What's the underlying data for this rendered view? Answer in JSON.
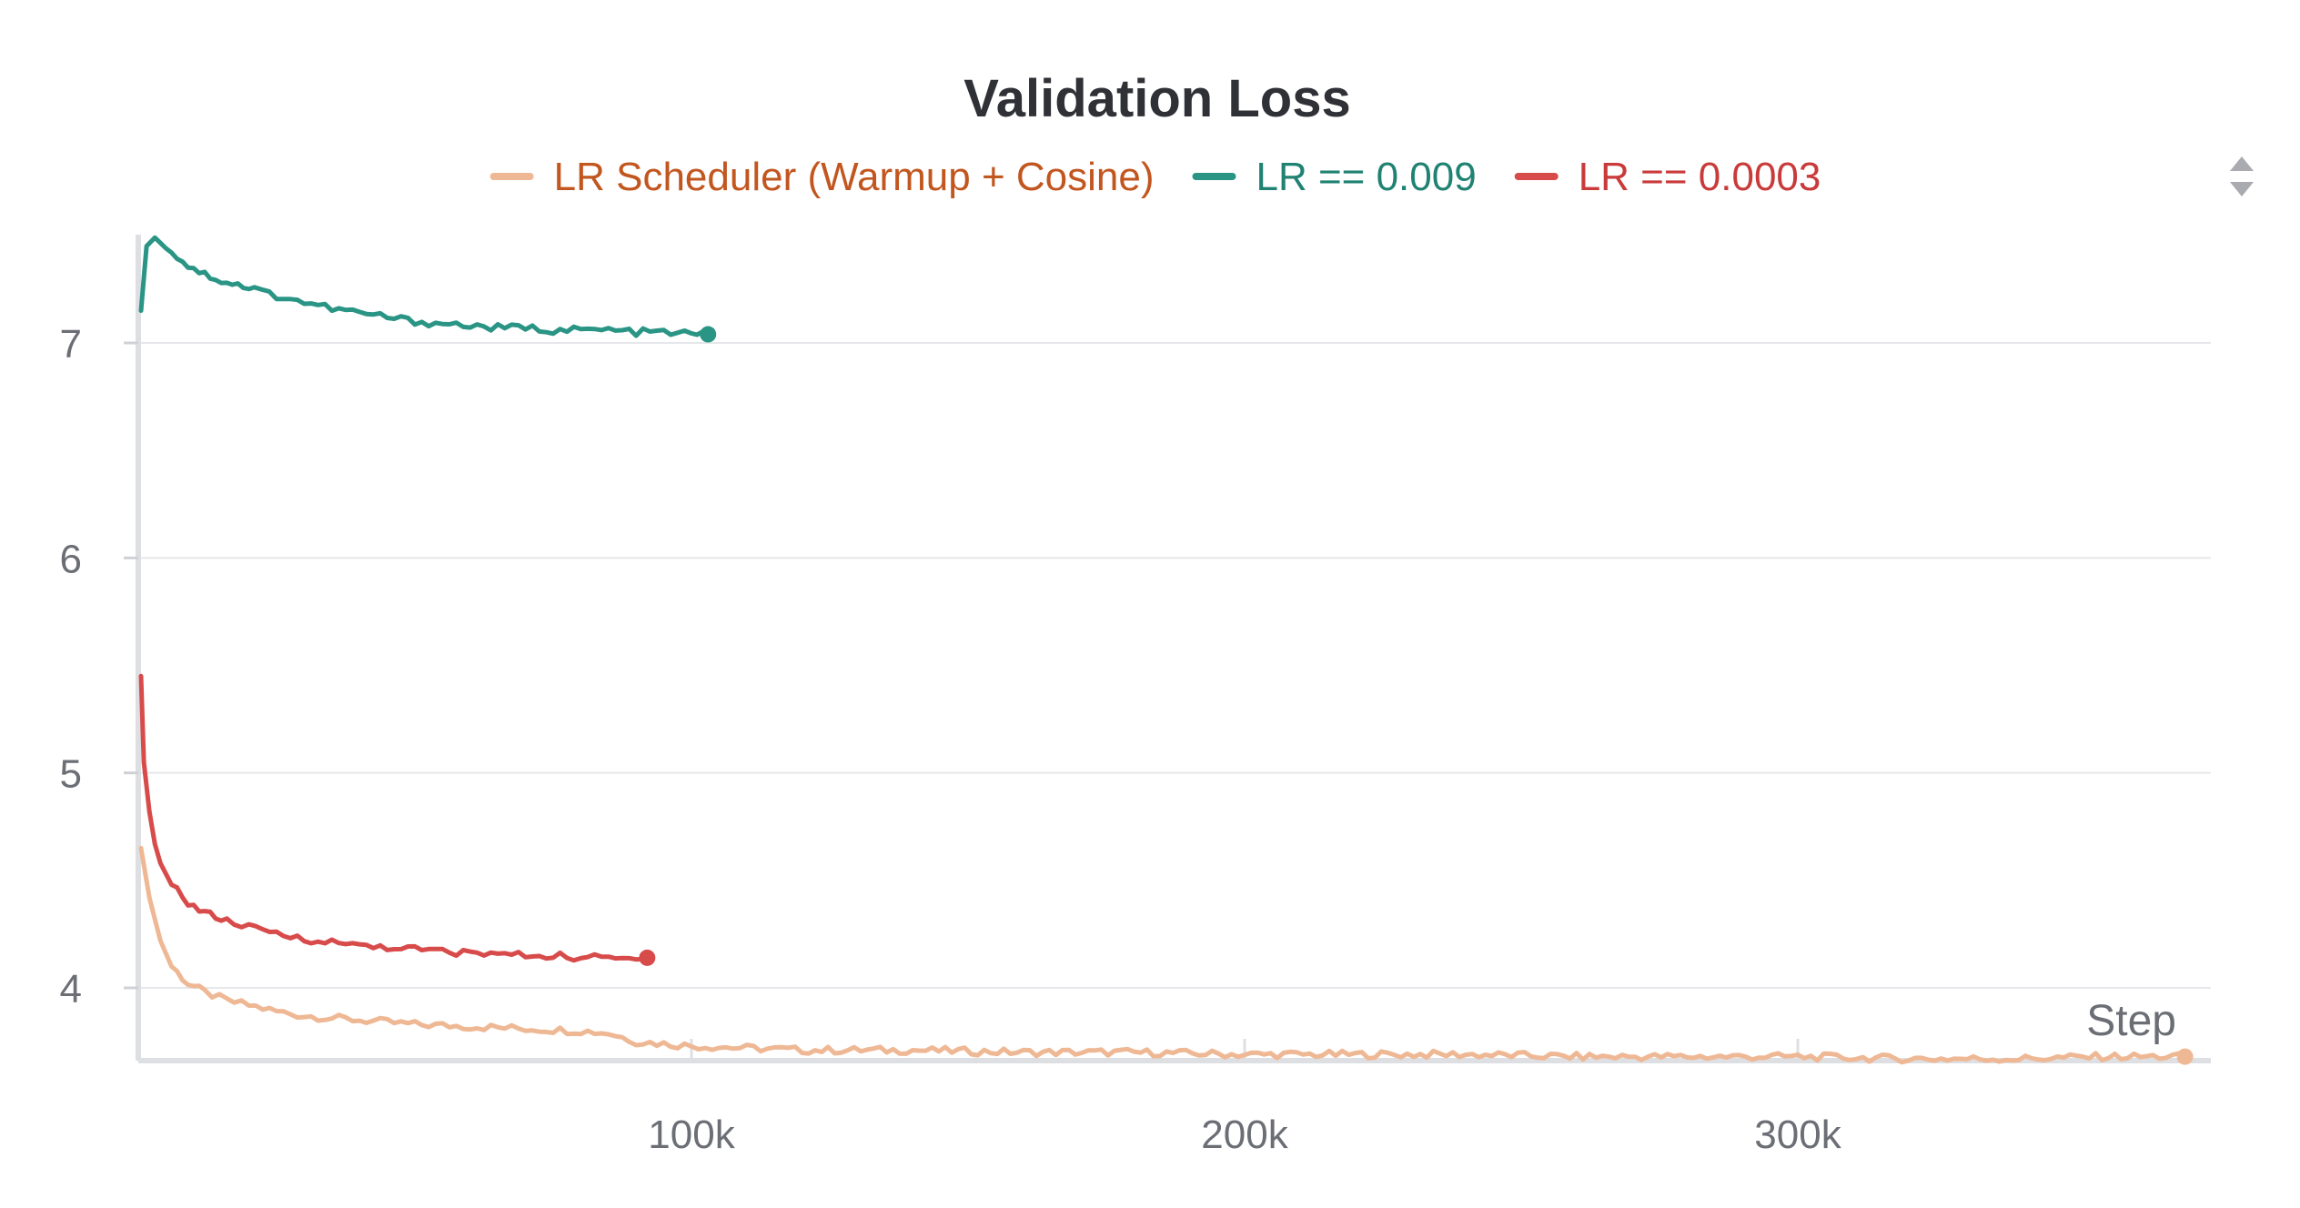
{
  "chart_data": {
    "type": "line",
    "title": "Validation Loss",
    "xlabel": "Step",
    "ylabel": "",
    "xlim": [
      0,
      370000
    ],
    "ylim": [
      3.65,
      7.5
    ],
    "x_ticks": [
      100000,
      200000,
      300000
    ],
    "x_tick_labels": [
      "100k",
      "200k",
      "300k"
    ],
    "y_ticks": [
      4,
      5,
      6,
      7
    ],
    "y_tick_labels": [
      "4",
      "5",
      "6",
      "7"
    ],
    "grid": true,
    "legend": "top-center",
    "series": [
      {
        "name": "LR Scheduler (Warmup + Cosine)",
        "color": "#efb895",
        "x": [
          500,
          2000,
          4000,
          6000,
          9000,
          12000,
          16000,
          20000,
          25000,
          30000,
          35000,
          40000,
          50000,
          60000,
          70000,
          80000,
          85000,
          90000,
          95000,
          100000,
          110000,
          120000,
          140000,
          160000,
          180000,
          200000,
          220000,
          240000,
          260000,
          280000,
          300000,
          320000,
          340000,
          355000,
          370000
        ],
        "y": [
          4.65,
          4.42,
          4.22,
          4.1,
          4.02,
          3.98,
          3.94,
          3.92,
          3.89,
          3.87,
          3.86,
          3.85,
          3.83,
          3.82,
          3.81,
          3.8,
          3.79,
          3.75,
          3.74,
          3.73,
          3.72,
          3.71,
          3.71,
          3.7,
          3.7,
          3.69,
          3.69,
          3.69,
          3.68,
          3.68,
          3.68,
          3.67,
          3.67,
          3.68,
          3.68
        ]
      },
      {
        "name": "LR == 0.009",
        "color": "#2a9585",
        "x": [
          500,
          1500,
          3000,
          5000,
          7000,
          9000,
          12000,
          15000,
          18000,
          21000,
          25000,
          30000,
          35000,
          40000,
          45000,
          50000,
          55000,
          60000,
          65000,
          70000,
          75000,
          80000,
          85000,
          90000,
          95000,
          100000,
          103000
        ],
        "y": [
          7.15,
          7.45,
          7.49,
          7.44,
          7.4,
          7.36,
          7.32,
          7.29,
          7.27,
          7.25,
          7.22,
          7.19,
          7.16,
          7.14,
          7.12,
          7.1,
          7.09,
          7.08,
          7.07,
          7.07,
          7.06,
          7.06,
          7.06,
          7.05,
          7.05,
          7.04,
          7.04
        ]
      },
      {
        "name": "LR == 0.0003",
        "color": "#d84b4b",
        "x": [
          500,
          1000,
          2000,
          3000,
          4000,
          6000,
          8000,
          10000,
          13000,
          16000,
          20000,
          25000,
          30000,
          35000,
          40000,
          45000,
          50000,
          55000,
          60000,
          65000,
          70000,
          75000,
          80000,
          85000,
          90000,
          92000
        ],
        "y": [
          5.45,
          5.05,
          4.82,
          4.67,
          4.58,
          4.48,
          4.42,
          4.38,
          4.34,
          4.31,
          4.28,
          4.25,
          4.23,
          4.21,
          4.2,
          4.19,
          4.18,
          4.17,
          4.16,
          4.16,
          4.15,
          4.15,
          4.14,
          4.14,
          4.13,
          4.14
        ]
      }
    ]
  },
  "legend_toggle_icon": "sort-arrows-icon"
}
